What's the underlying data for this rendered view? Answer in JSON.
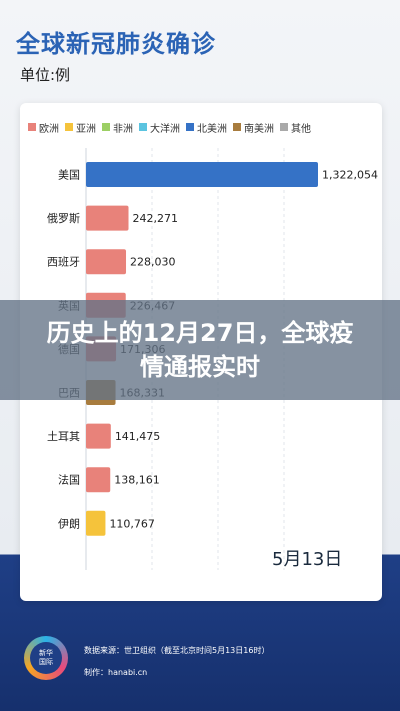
{
  "header": {
    "title": "全球新冠肺炎确诊",
    "unit": "单位:例"
  },
  "banner": {
    "text": "历史上的12月27日，全球疫情通报实时"
  },
  "footer": {
    "logo_line1": "新华",
    "logo_line2": "国际",
    "source": "数据来源：世卫组织（截至北京时间5月13日16时）",
    "producer": "制作：hanabi.cn"
  },
  "chart_data": {
    "type": "bar",
    "orientation": "horizontal",
    "date_label": "5月13日",
    "legend": [
      {
        "name": "欧洲",
        "color": "#e8827a"
      },
      {
        "name": "亚洲",
        "color": "#f5c33b"
      },
      {
        "name": "非洲",
        "color": "#9ccf64"
      },
      {
        "name": "大洋洲",
        "color": "#5bc4e0"
      },
      {
        "name": "北美洲",
        "color": "#3572c6"
      },
      {
        "name": "南美洲",
        "color": "#a87c3e"
      },
      {
        "name": "其他",
        "color": "#a9a9a9"
      }
    ],
    "categories": [
      "美国",
      "俄罗斯",
      "西班牙",
      "英国",
      "德国",
      "巴西",
      "土耳其",
      "法国",
      "伊朗"
    ],
    "values": [
      1322054,
      242271,
      228030,
      226467,
      171306,
      168331,
      141475,
      138161,
      110767
    ],
    "value_labels": [
      "1,322,054",
      "242,271",
      "228,030",
      "226,467",
      "171,306",
      "168,331",
      "141,475",
      "138,161",
      "110,767"
    ],
    "regions": [
      "北美洲",
      "欧洲",
      "欧洲",
      "欧洲",
      "欧洲",
      "南美洲",
      "欧洲",
      "欧洲",
      "亚洲"
    ],
    "xlim": [
      0,
      1322054
    ]
  }
}
